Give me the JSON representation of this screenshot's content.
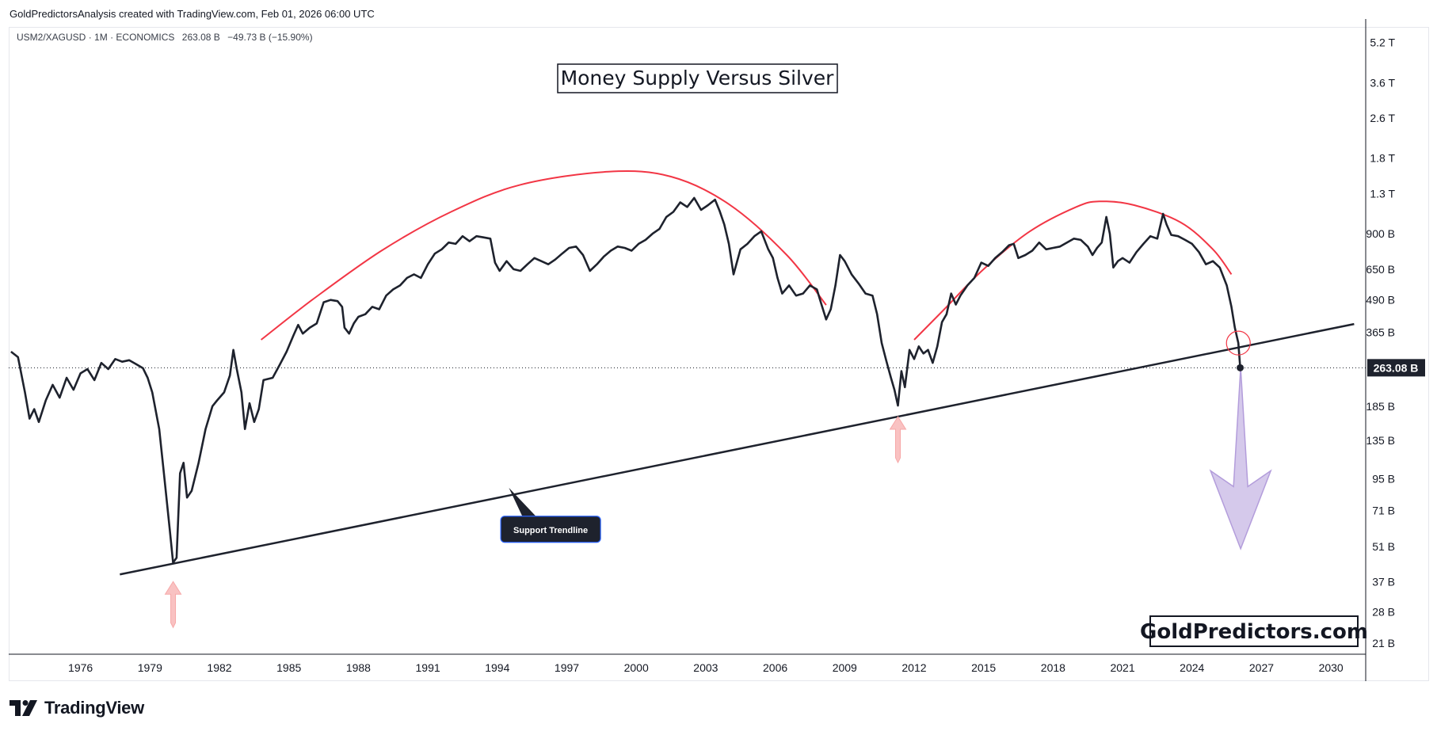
{
  "header": {
    "attribution": "GoldPredictorsAnalysis created with TradingView.com, Feb 01, 2026 06:00 UTC"
  },
  "legend": {
    "symbol": "USM2/XAGUSD",
    "interval": "1M",
    "source": "ECONOMICS",
    "value": "263.08 B",
    "change": "−49.73 B (−15.90%)"
  },
  "brand": {
    "name": "TradingView"
  },
  "colors": {
    "series": "#1e222d",
    "dome": "#f23645",
    "trendline": "#1e222d",
    "arrow_up": "#f7a8a8",
    "arrow_down": "#b39ddb",
    "label_bg": "#1e222d",
    "label_border": "#2962ff"
  },
  "chart_data": {
    "type": "line",
    "title": "Money Supply Versus Silver",
    "watermark": "GoldPredictors.com",
    "y_scale": "log",
    "ylim": [
      19,
      6000
    ],
    "xlim": [
      1972.9,
      2031.5
    ],
    "x_ticks": [
      "1976",
      "1979",
      "1982",
      "1985",
      "1988",
      "1991",
      "1994",
      "1997",
      "2000",
      "2003",
      "2006",
      "2009",
      "2012",
      "2015",
      "2018",
      "2021",
      "2024",
      "2027",
      "2030"
    ],
    "y_ticks": [
      {
        "label": "5.2 T",
        "value": 5200
      },
      {
        "label": "3.6 T",
        "value": 3600
      },
      {
        "label": "2.6 T",
        "value": 2600
      },
      {
        "label": "1.8 T",
        "value": 1800
      },
      {
        "label": "1.3 T",
        "value": 1300
      },
      {
        "label": "900 B",
        "value": 900
      },
      {
        "label": "650 B",
        "value": 650
      },
      {
        "label": "490 B",
        "value": 490
      },
      {
        "label": "365 B",
        "value": 365
      },
      {
        "label": "185 B",
        "value": 185
      },
      {
        "label": "135 B",
        "value": 135
      },
      {
        "label": "95 B",
        "value": 95
      },
      {
        "label": "71 B",
        "value": 71
      },
      {
        "label": "51 B",
        "value": 51
      },
      {
        "label": "37 B",
        "value": 37
      },
      {
        "label": "28 B",
        "value": 28
      },
      {
        "label": "21 B",
        "value": 21
      }
    ],
    "last_value": 263.08,
    "last_value_label": "263.08 B",
    "series": [
      {
        "name": "USM2/XAGUSD",
        "points": [
          [
            1973.0,
            305
          ],
          [
            1973.3,
            290
          ],
          [
            1973.6,
            210
          ],
          [
            1973.8,
            165
          ],
          [
            1974.0,
            180
          ],
          [
            1974.2,
            160
          ],
          [
            1974.5,
            195
          ],
          [
            1974.8,
            225
          ],
          [
            1975.1,
            200
          ],
          [
            1975.4,
            240
          ],
          [
            1975.7,
            215
          ],
          [
            1976.0,
            250
          ],
          [
            1976.3,
            260
          ],
          [
            1976.6,
            235
          ],
          [
            1976.9,
            275
          ],
          [
            1977.2,
            260
          ],
          [
            1977.5,
            285
          ],
          [
            1977.8,
            278
          ],
          [
            1978.1,
            282
          ],
          [
            1978.4,
            272
          ],
          [
            1978.7,
            262
          ],
          [
            1978.9,
            240
          ],
          [
            1979.1,
            210
          ],
          [
            1979.4,
            150
          ],
          [
            1979.6,
            100
          ],
          [
            1979.85,
            60
          ],
          [
            1980.0,
            44
          ],
          [
            1980.15,
            46
          ],
          [
            1980.3,
            100
          ],
          [
            1980.45,
            110
          ],
          [
            1980.6,
            80
          ],
          [
            1980.8,
            85
          ],
          [
            1981.1,
            110
          ],
          [
            1981.4,
            150
          ],
          [
            1981.7,
            185
          ],
          [
            1981.9,
            195
          ],
          [
            1982.2,
            210
          ],
          [
            1982.45,
            245
          ],
          [
            1982.6,
            310
          ],
          [
            1982.75,
            260
          ],
          [
            1982.95,
            210
          ],
          [
            1983.1,
            150
          ],
          [
            1983.3,
            190
          ],
          [
            1983.5,
            160
          ],
          [
            1983.7,
            180
          ],
          [
            1983.9,
            235
          ],
          [
            1984.3,
            240
          ],
          [
            1984.6,
            270
          ],
          [
            1984.9,
            305
          ],
          [
            1985.2,
            355
          ],
          [
            1985.4,
            390
          ],
          [
            1985.6,
            360
          ],
          [
            1985.9,
            380
          ],
          [
            1986.2,
            395
          ],
          [
            1986.5,
            480
          ],
          [
            1986.8,
            490
          ],
          [
            1987.1,
            485
          ],
          [
            1987.3,
            460
          ],
          [
            1987.4,
            380
          ],
          [
            1987.6,
            360
          ],
          [
            1987.8,
            395
          ],
          [
            1988.0,
            420
          ],
          [
            1988.3,
            430
          ],
          [
            1988.6,
            460
          ],
          [
            1988.9,
            450
          ],
          [
            1989.2,
            510
          ],
          [
            1989.5,
            540
          ],
          [
            1989.8,
            560
          ],
          [
            1990.1,
            600
          ],
          [
            1990.4,
            620
          ],
          [
            1990.7,
            600
          ],
          [
            1991.0,
            680
          ],
          [
            1991.3,
            750
          ],
          [
            1991.6,
            780
          ],
          [
            1991.9,
            830
          ],
          [
            1992.2,
            820
          ],
          [
            1992.5,
            880
          ],
          [
            1992.8,
            840
          ],
          [
            1993.1,
            880
          ],
          [
            1993.4,
            870
          ],
          [
            1993.7,
            860
          ],
          [
            1993.9,
            690
          ],
          [
            1994.1,
            640
          ],
          [
            1994.4,
            700
          ],
          [
            1994.7,
            650
          ],
          [
            1995.0,
            640
          ],
          [
            1995.3,
            680
          ],
          [
            1995.6,
            720
          ],
          [
            1995.9,
            700
          ],
          [
            1996.2,
            680
          ],
          [
            1996.5,
            710
          ],
          [
            1996.8,
            750
          ],
          [
            1997.1,
            790
          ],
          [
            1997.4,
            800
          ],
          [
            1997.7,
            740
          ],
          [
            1998.0,
            640
          ],
          [
            1998.3,
            680
          ],
          [
            1998.6,
            730
          ],
          [
            1998.9,
            770
          ],
          [
            1999.2,
            800
          ],
          [
            1999.5,
            790
          ],
          [
            1999.8,
            770
          ],
          [
            2000.1,
            820
          ],
          [
            2000.4,
            850
          ],
          [
            2000.7,
            900
          ],
          [
            2001.0,
            940
          ],
          [
            2001.3,
            1050
          ],
          [
            2001.6,
            1100
          ],
          [
            2001.9,
            1200
          ],
          [
            2002.2,
            1150
          ],
          [
            2002.5,
            1250
          ],
          [
            2002.8,
            1120
          ],
          [
            2003.1,
            1170
          ],
          [
            2003.4,
            1230
          ],
          [
            2003.6,
            1110
          ],
          [
            2003.8,
            980
          ],
          [
            2004.0,
            820
          ],
          [
            2004.2,
            620
          ],
          [
            2004.5,
            780
          ],
          [
            2004.8,
            820
          ],
          [
            2005.1,
            880
          ],
          [
            2005.4,
            920
          ],
          [
            2005.7,
            780
          ],
          [
            2005.9,
            720
          ],
          [
            2006.1,
            600
          ],
          [
            2006.3,
            520
          ],
          [
            2006.6,
            560
          ],
          [
            2006.9,
            510
          ],
          [
            2007.2,
            520
          ],
          [
            2007.5,
            560
          ],
          [
            2007.8,
            540
          ],
          [
            2008.0,
            470
          ],
          [
            2008.2,
            410
          ],
          [
            2008.4,
            450
          ],
          [
            2008.6,
            560
          ],
          [
            2008.8,
            740
          ],
          [
            2009.0,
            700
          ],
          [
            2009.3,
            620
          ],
          [
            2009.6,
            570
          ],
          [
            2009.9,
            520
          ],
          [
            2010.2,
            510
          ],
          [
            2010.4,
            430
          ],
          [
            2010.6,
            330
          ],
          [
            2010.8,
            280
          ],
          [
            2011.0,
            240
          ],
          [
            2011.15,
            215
          ],
          [
            2011.3,
            186
          ],
          [
            2011.45,
            255
          ],
          [
            2011.6,
            220
          ],
          [
            2011.8,
            310
          ],
          [
            2012.0,
            285
          ],
          [
            2012.2,
            320
          ],
          [
            2012.4,
            300
          ],
          [
            2012.6,
            310
          ],
          [
            2012.8,
            275
          ],
          [
            2013.0,
            320
          ],
          [
            2013.2,
            400
          ],
          [
            2013.4,
            430
          ],
          [
            2013.6,
            520
          ],
          [
            2013.8,
            470
          ],
          [
            2014.0,
            510
          ],
          [
            2014.3,
            560
          ],
          [
            2014.6,
            600
          ],
          [
            2014.9,
            690
          ],
          [
            2015.2,
            670
          ],
          [
            2015.5,
            720
          ],
          [
            2015.8,
            760
          ],
          [
            2016.1,
            810
          ],
          [
            2016.3,
            820
          ],
          [
            2016.5,
            720
          ],
          [
            2016.8,
            740
          ],
          [
            2017.1,
            770
          ],
          [
            2017.4,
            830
          ],
          [
            2017.7,
            780
          ],
          [
            2018.0,
            790
          ],
          [
            2018.3,
            800
          ],
          [
            2018.6,
            830
          ],
          [
            2018.9,
            860
          ],
          [
            2019.2,
            850
          ],
          [
            2019.5,
            800
          ],
          [
            2019.7,
            740
          ],
          [
            2019.9,
            790
          ],
          [
            2020.1,
            830
          ],
          [
            2020.3,
            1050
          ],
          [
            2020.45,
            900
          ],
          [
            2020.6,
            660
          ],
          [
            2020.8,
            700
          ],
          [
            2021.0,
            720
          ],
          [
            2021.3,
            690
          ],
          [
            2021.6,
            760
          ],
          [
            2021.9,
            820
          ],
          [
            2022.2,
            880
          ],
          [
            2022.5,
            860
          ],
          [
            2022.75,
            1080
          ],
          [
            2022.9,
            980
          ],
          [
            2023.1,
            890
          ],
          [
            2023.4,
            880
          ],
          [
            2023.7,
            850
          ],
          [
            2024.0,
            820
          ],
          [
            2024.3,
            760
          ],
          [
            2024.6,
            680
          ],
          [
            2024.9,
            700
          ],
          [
            2025.2,
            660
          ],
          [
            2025.5,
            560
          ],
          [
            2025.7,
            460
          ],
          [
            2025.85,
            380
          ],
          [
            2026.0,
            330
          ],
          [
            2026.08,
            263.08
          ]
        ]
      }
    ],
    "annotations": [
      {
        "type": "trendline",
        "from": [
          1977.7,
          39.5
        ],
        "to": [
          2031.0,
          393
        ]
      },
      {
        "type": "arc",
        "name": "first-dome",
        "points": [
          [
            1983.8,
            340
          ],
          [
            1986.0,
            490
          ],
          [
            1989.0,
            770
          ],
          [
            1992.0,
            1100
          ],
          [
            1995.0,
            1410
          ],
          [
            1998.8,
            1590
          ],
          [
            2001.5,
            1520
          ],
          [
            2004.0,
            1180
          ],
          [
            2006.5,
            740
          ],
          [
            2008.2,
            468
          ]
        ]
      },
      {
        "type": "arc",
        "name": "second-dome",
        "points": [
          [
            2012.0,
            340
          ],
          [
            2013.3,
            450
          ],
          [
            2015.0,
            650
          ],
          [
            2017.0,
            920
          ],
          [
            2019.0,
            1150
          ],
          [
            2020.0,
            1210
          ],
          [
            2021.5,
            1170
          ],
          [
            2023.5,
            1000
          ],
          [
            2024.9,
            780
          ],
          [
            2025.7,
            620
          ]
        ]
      },
      {
        "type": "circle",
        "at": [
          2026.0,
          330
        ]
      },
      {
        "type": "arrow_up",
        "at": [
          1980.0,
          37
        ]
      },
      {
        "type": "arrow_up",
        "at": [
          2011.3,
          168
        ]
      },
      {
        "type": "arrow_down",
        "from": [
          2026.1,
          263.08
        ],
        "to": [
          2026.1,
          50
        ]
      },
      {
        "type": "label",
        "text": "Support Trendline",
        "anchor": [
          1994.5,
          87.5
        ],
        "at": [
          1996.2,
          60
        ]
      }
    ]
  }
}
